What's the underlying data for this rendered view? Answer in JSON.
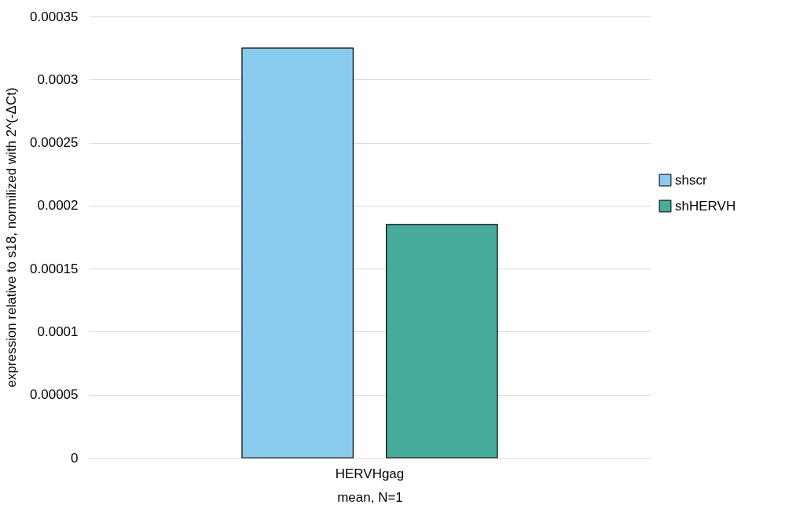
{
  "chart_data": {
    "type": "bar",
    "categories": [
      "HERVHgag"
    ],
    "xlabel": "mean, N=1",
    "ylabel": "expression relative to s18, normilized with 2^(-ΔCt)",
    "series": [
      {
        "name": "shscr",
        "color": "#89cbee",
        "values": [
          0.000325
        ]
      },
      {
        "name": "shHERVH",
        "color": "#46ab9b",
        "values": [
          0.000185
        ]
      }
    ],
    "ylim": [
      0,
      0.00035
    ],
    "yticks": [
      0,
      {
        "value": 5e-05,
        "label": "0.00005"
      },
      0.0001,
      0.00015,
      0.0002,
      0.00025,
      0.0003,
      0.00035
    ],
    "grid": "y",
    "legend": "right"
  }
}
